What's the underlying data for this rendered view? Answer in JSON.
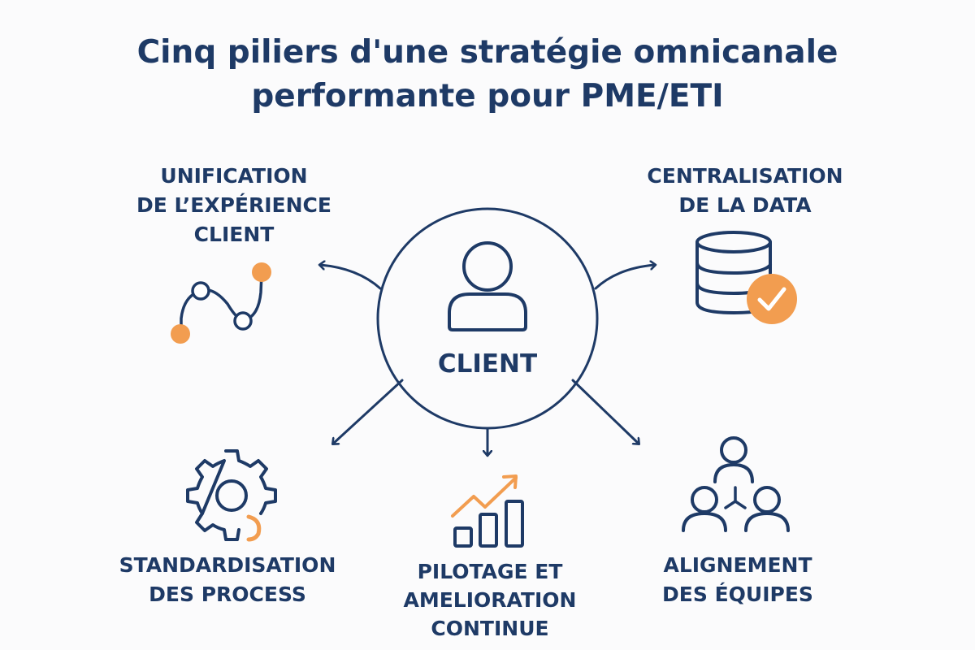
{
  "title": {
    "line1": "Cinq piliers d'une stratégie omnicanale",
    "line2": "performante pour PME/ETI"
  },
  "center": {
    "label": "CLIENT",
    "icon": "person-icon"
  },
  "pillars": [
    {
      "lines": [
        "UNIFICATION",
        "DE L’EXPÉRIENCE",
        "CLIENT"
      ],
      "icon": "journey-path-icon"
    },
    {
      "lines": [
        "CENTRALISATION",
        "DE LA DATA"
      ],
      "icon": "database-check-icon"
    },
    {
      "lines": [
        "STANDARDISATION",
        "DES PROCESS"
      ],
      "icon": "gear-icon"
    },
    {
      "lines": [
        "PILOTAGE ET",
        "AMELIORATION",
        "CONTINUE"
      ],
      "icon": "bar-chart-trend-icon"
    },
    {
      "lines": [
        "ALIGNEMENT",
        "DES ÉQUIPES"
      ],
      "icon": "team-icon"
    }
  ],
  "colors": {
    "primary": "#1e3a66",
    "accent": "#f29d50",
    "background": "#fbfbfc"
  }
}
